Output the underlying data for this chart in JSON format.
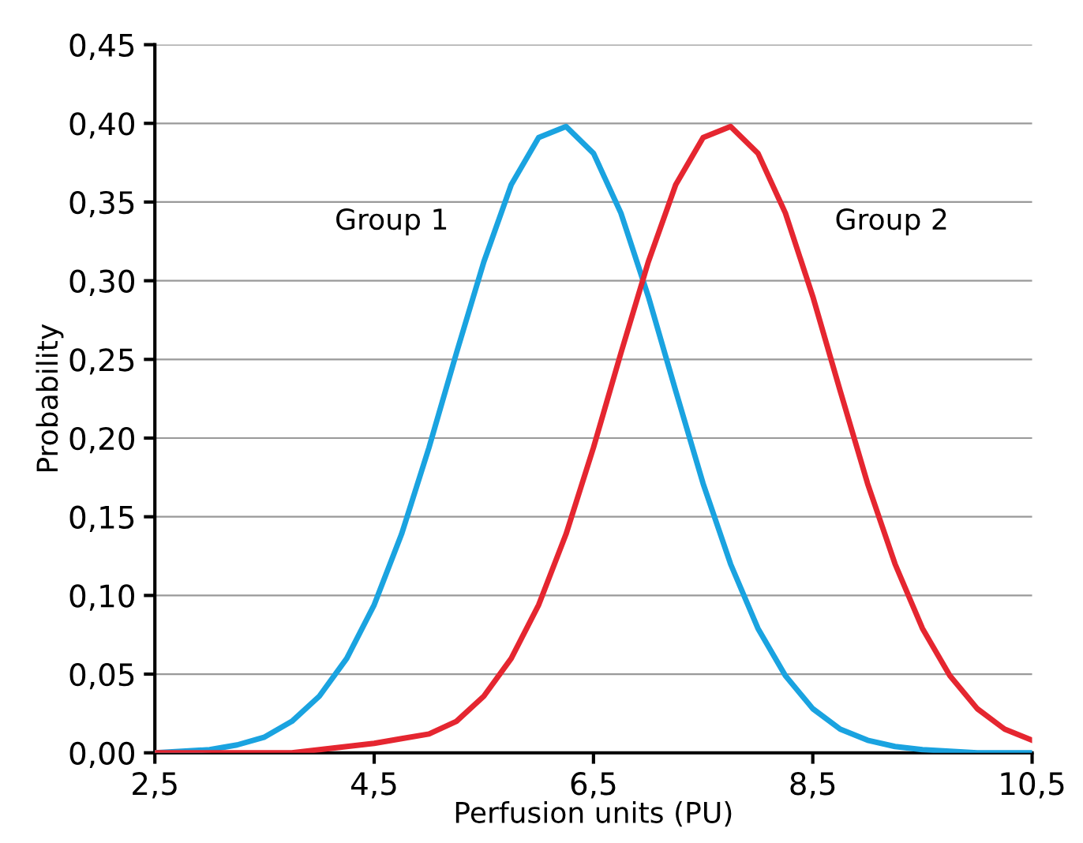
{
  "chart_data": {
    "type": "line",
    "xlabel": "Perfusion units (PU)",
    "ylabel": "Probability",
    "x": [
      2.5,
      2.75,
      3.0,
      3.25,
      3.5,
      3.75,
      4.0,
      4.25,
      4.5,
      4.75,
      5.0,
      5.25,
      5.5,
      5.75,
      6.0,
      6.25,
      6.5,
      6.75,
      7.0,
      7.25,
      7.5,
      7.75,
      8.0,
      8.25,
      8.5,
      8.75,
      9.0,
      9.25,
      9.5,
      9.75,
      10.0,
      10.25,
      10.5
    ],
    "series": [
      {
        "name": "Group 1",
        "color": "#1aa3e0",
        "values": [
          0.0,
          0.001,
          0.002,
          0.005,
          0.01,
          0.02,
          0.036,
          0.06,
          0.094,
          0.139,
          0.194,
          0.254,
          0.312,
          0.361,
          0.391,
          0.398,
          0.381,
          0.343,
          0.29,
          0.23,
          0.171,
          0.12,
          0.079,
          0.049,
          0.028,
          0.015,
          0.008,
          0.004,
          0.002,
          0.001,
          0.0,
          0.0,
          0.0
        ]
      },
      {
        "name": "Group 2",
        "color": "#e52630",
        "values": [
          0.0,
          0.0,
          0.0,
          0.0,
          0.0,
          0.0,
          0.002,
          0.004,
          0.006,
          0.009,
          0.012,
          0.02,
          0.036,
          0.06,
          0.094,
          0.139,
          0.194,
          0.254,
          0.312,
          0.361,
          0.391,
          0.398,
          0.381,
          0.343,
          0.29,
          0.23,
          0.171,
          0.12,
          0.079,
          0.049,
          0.028,
          0.015,
          0.008
        ]
      }
    ],
    "xlim": [
      2.5,
      10.5
    ],
    "xticks": [
      {
        "value": 2.5,
        "label": "2,5"
      },
      {
        "value": 4.5,
        "label": "4,5"
      },
      {
        "value": 6.5,
        "label": "6,5"
      },
      {
        "value": 8.5,
        "label": "8,5"
      },
      {
        "value": 10.5,
        "label": "10,5"
      }
    ],
    "ylim": [
      0,
      0.45
    ],
    "yticks": [
      {
        "value": 0,
        "label": "0,00"
      },
      {
        "value": 0.05,
        "label": "0,05"
      },
      {
        "value": 0.1,
        "label": "0,10"
      },
      {
        "value": 0.15,
        "label": "0,15"
      },
      {
        "value": 0.2,
        "label": "0,20"
      },
      {
        "value": 0.25,
        "label": "0,25"
      },
      {
        "value": 0.3,
        "label": "0,30"
      },
      {
        "value": 0.35,
        "label": "0,35"
      },
      {
        "value": 0.4,
        "label": "0,40"
      },
      {
        "value": 0.45,
        "label": "0,45"
      }
    ],
    "grid": "y",
    "legend": false,
    "marker": "none",
    "line_style": "solid"
  }
}
